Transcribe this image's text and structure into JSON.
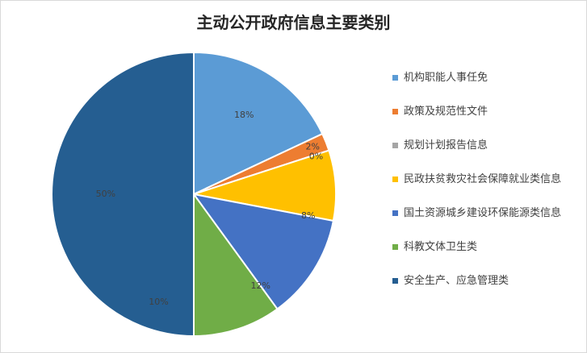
{
  "chart_data": {
    "type": "pie",
    "title": "主动公开政府信息主要类别",
    "categories": [
      "机构职能人事任免",
      "政策及规范性文件",
      "规划计划报告信息",
      "民政扶贫救灾社会保障就业类信息",
      "国土资源城乡建设环保能源类信息",
      "科教文体卫生类",
      "安全生产、应急管理类"
    ],
    "values": [
      18,
      2,
      0,
      8,
      12,
      10,
      50
    ],
    "labels": [
      "18%",
      "2%",
      "0%",
      "8%",
      "12%",
      "10%",
      "50%"
    ],
    "colors": [
      "#5b9bd5",
      "#ed7d31",
      "#a5a5a5",
      "#ffc000",
      "#4472c4",
      "#70ad47",
      "#255e91"
    ],
    "legend_position": "right"
  }
}
